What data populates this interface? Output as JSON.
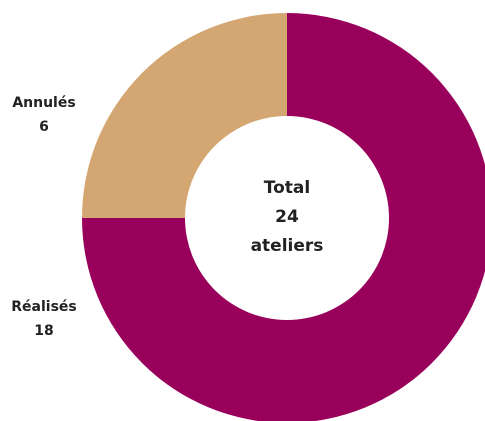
{
  "chart_data": {
    "type": "pie",
    "variant": "donut",
    "categories": [
      "Réalisés",
      "Annulés"
    ],
    "values": [
      18,
      6
    ],
    "colors": [
      "#99005c",
      "#d4a671"
    ],
    "center": {
      "line1": "Total",
      "line2": "24",
      "line3": "ateliers"
    },
    "legend": "none"
  }
}
